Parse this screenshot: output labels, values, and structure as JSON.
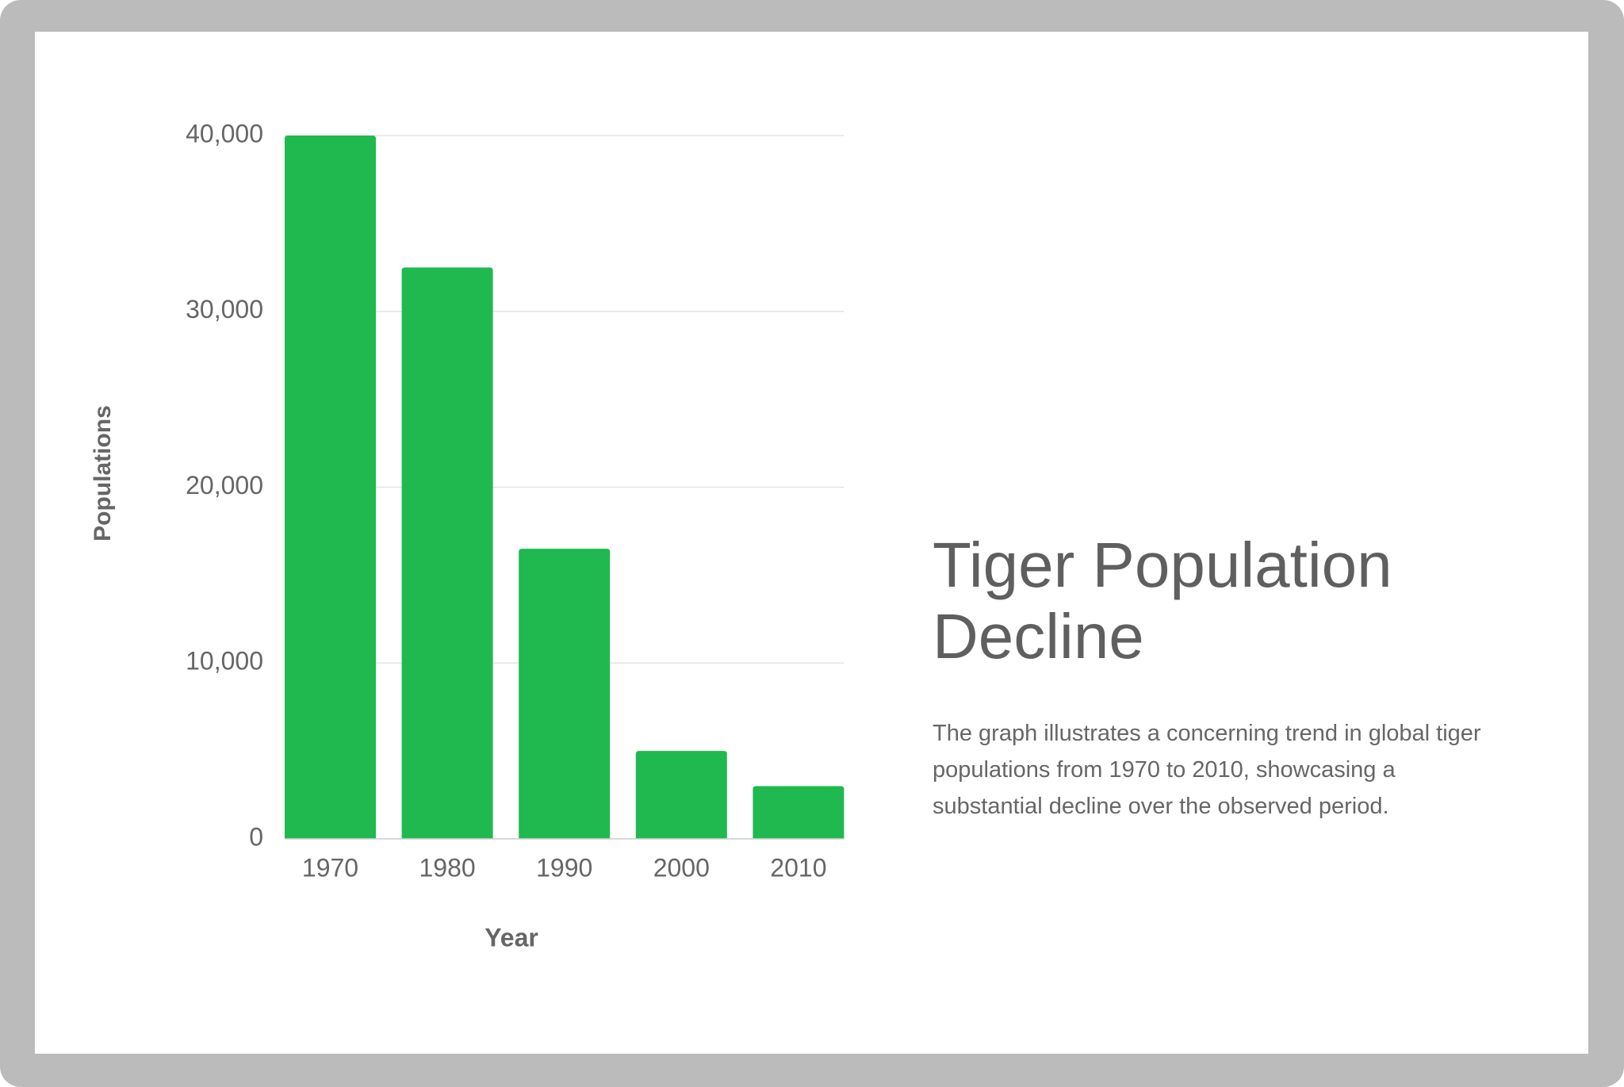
{
  "chart_data": {
    "type": "bar",
    "title": "Tiger Population Decline",
    "description": "The graph illustrates a concerning trend in global tiger populations from 1970 to 2010, showcasing a substantial decline over the observed period.",
    "x_label": "Year",
    "y_label": "Populations",
    "categories": [
      "1970",
      "1980",
      "1990",
      "2000",
      "2010"
    ],
    "values": [
      40000,
      32500,
      16500,
      5000,
      3000
    ],
    "color": "#1fb94f",
    "ylim": [
      0,
      40000
    ],
    "yticks": [
      0,
      {
        "value": 10000,
        "label": "10,000"
      },
      {
        "value": 20000,
        "label": "20,000"
      },
      {
        "value": 30000,
        "label": "30,000"
      },
      {
        "value": 40000,
        "label": "40,000"
      }
    ],
    "grid": true
  }
}
